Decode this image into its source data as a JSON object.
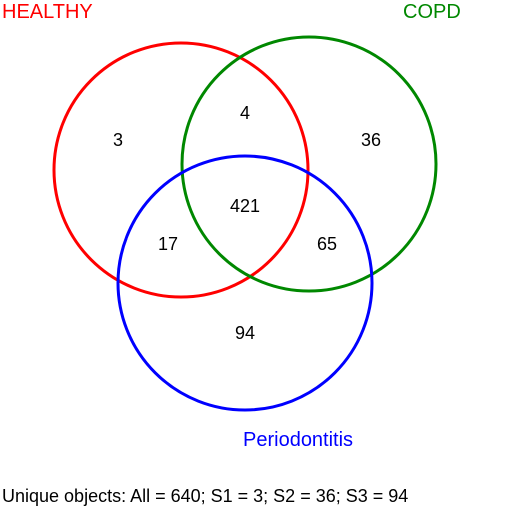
{
  "sets": [
    {
      "id": "S1",
      "name": "HEALTHY",
      "color": "#ff0000"
    },
    {
      "id": "S2",
      "name": "COPD",
      "color": "#008800"
    },
    {
      "id": "S3",
      "name": "Periodontitis",
      "color": "#0000ff"
    }
  ],
  "regions": {
    "s1_only": "3",
    "s1_s2": "4",
    "s2_only": "36",
    "s1_s2_s3": "421",
    "s1_s3": "17",
    "s2_s3": "65",
    "s3_only": "94"
  },
  "summary": "Unique objects: All = 640; S1 = 3; S2 = 36; S3 = 94"
}
